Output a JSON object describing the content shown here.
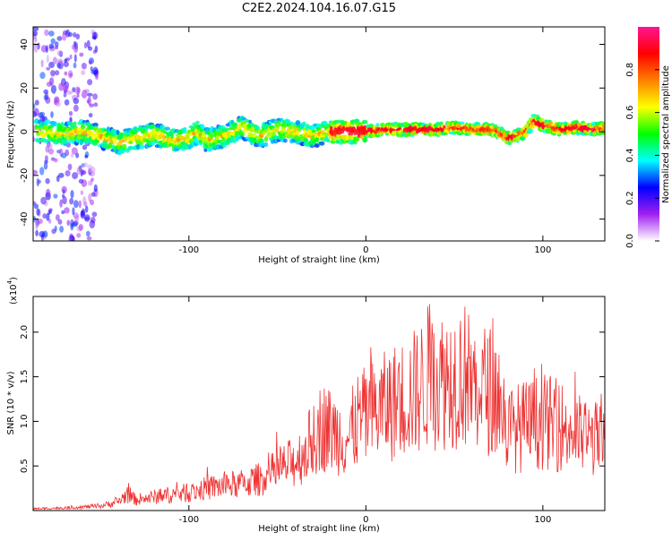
{
  "title": "C2E2.2024.104.16.07.G15",
  "spectrogram": {
    "xlabel": "Height of straight line (km)",
    "ylabel": "Frequency (Hz)",
    "xlim": [
      -188,
      135
    ],
    "ylim": [
      -50,
      48
    ],
    "x_ticks": [
      -100,
      0,
      100
    ],
    "y_ticks": [
      -40,
      -20,
      0,
      20,
      40
    ],
    "tick_labels_x": [
      "-100",
      "0",
      "100"
    ],
    "tick_labels_y": [
      "-40",
      "-20",
      "0",
      "20",
      "40"
    ]
  },
  "colorbar": {
    "label": "Normalized spectral amplitude",
    "ticks": [
      0.0,
      0.2,
      0.4,
      0.6,
      0.8
    ],
    "tick_labels": [
      "0.0",
      "0.2",
      "0.4",
      "0.6",
      "0.8"
    ],
    "colors": [
      "#ffffff",
      "#a020f0",
      "#0000ff",
      "#00ffff",
      "#00ff00",
      "#ffff00",
      "#ff8000",
      "#ff0000",
      "#ff1493"
    ]
  },
  "snr": {
    "xlabel": "Height of straight line (km)",
    "ylabel": "SNR (10 * v/v)",
    "multiplier": "(x10",
    "multiplier_exp": "4",
    "multiplier_close": ")",
    "xlim": [
      -188,
      135
    ],
    "ylim": [
      0,
      2.4
    ],
    "x_ticks": [
      -100,
      0,
      100
    ],
    "y_ticks": [
      0.5,
      1.0,
      1.5,
      2.0
    ],
    "tick_labels_x": [
      "-100",
      "0",
      "100"
    ],
    "tick_labels_y": [
      "0.5",
      "1.0",
      "1.5",
      "2.0"
    ],
    "line_color": "#ee3333"
  },
  "chart_data": [
    {
      "type": "heatmap",
      "xlabel": "Height of straight line (km)",
      "ylabel": "Frequency (Hz)",
      "xlim": [
        -188,
        135
      ],
      "ylim": [
        -50,
        48
      ],
      "ridge": {
        "x": [
          -185,
          -170,
          -160,
          -150,
          -140,
          -130,
          -120,
          -110,
          -100,
          -95,
          -90,
          -80,
          -70,
          -60,
          -50,
          -40,
          -30,
          -20,
          -10,
          0,
          10,
          20,
          30,
          40,
          50,
          60,
          70,
          75,
          80,
          85,
          90,
          95,
          100,
          110,
          120,
          130,
          135
        ],
        "y": [
          0,
          -1,
          0,
          -2,
          -5,
          -3,
          -1,
          -4,
          -3,
          0,
          -4,
          -2,
          2,
          -2,
          1,
          0,
          -2,
          0,
          0,
          0,
          1,
          1,
          1,
          1,
          2,
          1,
          1,
          0,
          -3,
          -2,
          0,
          5,
          3,
          1,
          2,
          1,
          2
        ]
      },
      "high_amplitude_segments": [
        [
          -20,
          5
        ],
        [
          10,
          45
        ],
        [
          80,
          84
        ],
        [
          95,
          102
        ],
        [
          110,
          130
        ]
      ]
    },
    {
      "type": "line",
      "xlabel": "Height of straight line (km)",
      "ylabel": "SNR (10 * v/v)",
      "xlim": [
        -188,
        135
      ],
      "ylim": [
        0,
        2.4
      ],
      "y_scale_note": "x10^4",
      "x": [
        -188,
        -170,
        -150,
        -140,
        -135,
        -130,
        -120,
        -110,
        -100,
        -90,
        -80,
        -70,
        -60,
        -50,
        -40,
        -35,
        -30,
        -25,
        -20,
        -15,
        -10,
        -5,
        0,
        10,
        20,
        30,
        35,
        40,
        50,
        55,
        60,
        70,
        75,
        80,
        90,
        100,
        110,
        120,
        130,
        135
      ],
      "y": [
        0.02,
        0.03,
        0.05,
        0.1,
        0.18,
        0.12,
        0.15,
        0.18,
        0.2,
        0.25,
        0.28,
        0.3,
        0.35,
        0.45,
        0.55,
        0.65,
        0.8,
        0.95,
        0.9,
        0.85,
        0.8,
        1.0,
        1.05,
        1.15,
        1.25,
        1.35,
        1.5,
        1.45,
        1.5,
        1.55,
        1.4,
        1.35,
        1.3,
        0.9,
        0.95,
        1.0,
        0.95,
        0.85,
        0.8,
        0.75
      ]
    }
  ]
}
